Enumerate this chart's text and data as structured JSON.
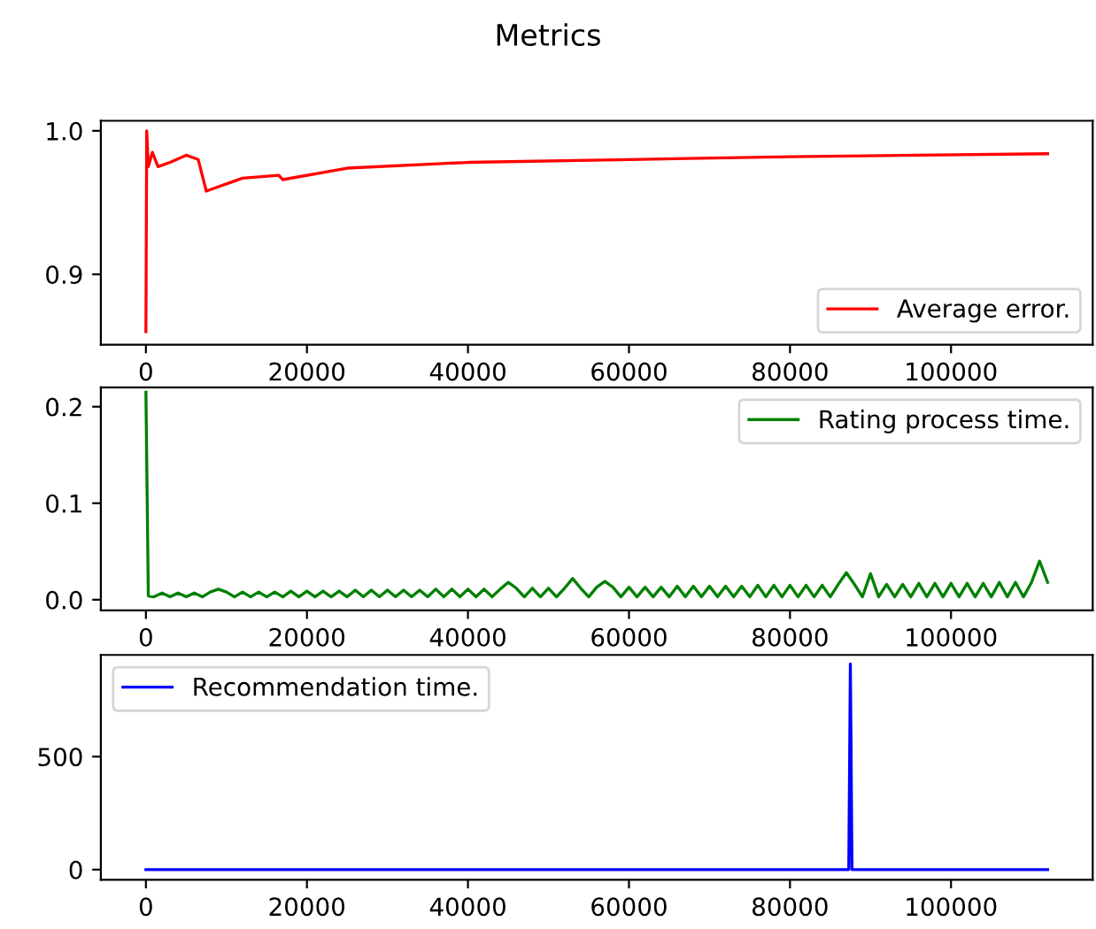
{
  "chart_data": [
    {
      "type": "line",
      "title": "Metrics",
      "xlim": [
        -5600,
        117600
      ],
      "xticks": [
        0,
        20000,
        40000,
        60000,
        80000,
        100000
      ],
      "ylim": [
        0.851,
        1.007
      ],
      "yticks": [
        0.9,
        {
          "value": 1,
          "label": "1.0"
        }
      ],
      "legend": "bottom right",
      "grid": false,
      "series": [
        {
          "name": "Average error.",
          "color": "#ff0000",
          "x": [
            0,
            100,
            300,
            800,
            1500,
            3000,
            5000,
            6500,
            7500,
            10000,
            12000,
            16500,
            17000,
            25000,
            40000,
            60000,
            80000,
            112000
          ],
          "values": [
            0.86,
            1.0,
            0.975,
            0.985,
            0.975,
            0.978,
            0.983,
            0.98,
            0.958,
            0.963,
            0.967,
            0.969,
            0.966,
            0.974,
            0.978,
            0.98,
            0.982,
            0.984
          ]
        }
      ]
    },
    {
      "type": "line",
      "xlim": [
        -5600,
        117600
      ],
      "xticks": [
        0,
        20000,
        40000,
        60000,
        80000,
        100000
      ],
      "ylim": [
        -0.011,
        0.22
      ],
      "yticks": [
        {
          "value": 0,
          "label": "0.0"
        },
        0.1,
        0.2
      ],
      "legend": "top right",
      "grid": false,
      "series": [
        {
          "name": "Rating process time.",
          "color": "#008000",
          "x": [
            0,
            300,
            1000,
            2000,
            3000,
            4000,
            5000,
            6000,
            7000,
            8000,
            9000,
            10000,
            11000,
            12000,
            13000,
            14000,
            15000,
            16000,
            17000,
            18000,
            19000,
            20000,
            21000,
            22000,
            23000,
            24000,
            25000,
            26000,
            27000,
            28000,
            29000,
            30000,
            31000,
            32000,
            33000,
            34000,
            35000,
            36000,
            37000,
            38000,
            39000,
            40000,
            41000,
            42000,
            43000,
            44000,
            45000,
            46000,
            47000,
            48000,
            49000,
            50000,
            51000,
            52000,
            53000,
            54000,
            55000,
            56000,
            57000,
            58000,
            59000,
            60000,
            61000,
            62000,
            63000,
            64000,
            65000,
            66000,
            67000,
            68000,
            69000,
            70000,
            71000,
            72000,
            73000,
            74000,
            75000,
            76000,
            77000,
            78000,
            79000,
            80000,
            81000,
            82000,
            83000,
            84000,
            85000,
            86000,
            87000,
            88000,
            89000,
            90000,
            91000,
            92000,
            93000,
            94000,
            95000,
            96000,
            97000,
            98000,
            99000,
            100000,
            101000,
            102000,
            103000,
            104000,
            105000,
            106000,
            107000,
            108000,
            109000,
            110000,
            111000,
            112000
          ],
          "values": [
            0.215,
            0.004,
            0.003,
            0.007,
            0.003,
            0.007,
            0.003,
            0.007,
            0.003,
            0.008,
            0.011,
            0.008,
            0.003,
            0.008,
            0.003,
            0.008,
            0.003,
            0.008,
            0.003,
            0.009,
            0.003,
            0.009,
            0.003,
            0.009,
            0.003,
            0.009,
            0.003,
            0.01,
            0.003,
            0.01,
            0.003,
            0.01,
            0.003,
            0.01,
            0.003,
            0.01,
            0.003,
            0.011,
            0.003,
            0.011,
            0.003,
            0.011,
            0.003,
            0.011,
            0.003,
            0.011,
            0.018,
            0.012,
            0.003,
            0.012,
            0.003,
            0.012,
            0.003,
            0.012,
            0.022,
            0.012,
            0.003,
            0.013,
            0.019,
            0.013,
            0.003,
            0.013,
            0.003,
            0.013,
            0.003,
            0.013,
            0.003,
            0.014,
            0.003,
            0.014,
            0.003,
            0.014,
            0.003,
            0.014,
            0.003,
            0.014,
            0.003,
            0.015,
            0.003,
            0.015,
            0.003,
            0.015,
            0.003,
            0.015,
            0.003,
            0.015,
            0.003,
            0.016,
            0.028,
            0.016,
            0.003,
            0.027,
            0.003,
            0.016,
            0.003,
            0.016,
            0.003,
            0.017,
            0.003,
            0.017,
            0.003,
            0.017,
            0.003,
            0.017,
            0.003,
            0.017,
            0.003,
            0.018,
            0.003,
            0.018,
            0.003,
            0.018,
            0.04,
            0.018
          ]
        }
      ]
    },
    {
      "type": "line",
      "xlim": [
        -5600,
        117600
      ],
      "xticks": [
        0,
        20000,
        40000,
        60000,
        80000,
        100000
      ],
      "ylim": [
        -45,
        950
      ],
      "yticks": [
        0,
        500
      ],
      "legend": "top left",
      "grid": false,
      "series": [
        {
          "name": "Recommendation time.",
          "color": "#0000ff",
          "x": [
            0,
            87300,
            87500,
            87700,
            112000
          ],
          "values": [
            0,
            0,
            910,
            0,
            0
          ]
        }
      ]
    }
  ]
}
